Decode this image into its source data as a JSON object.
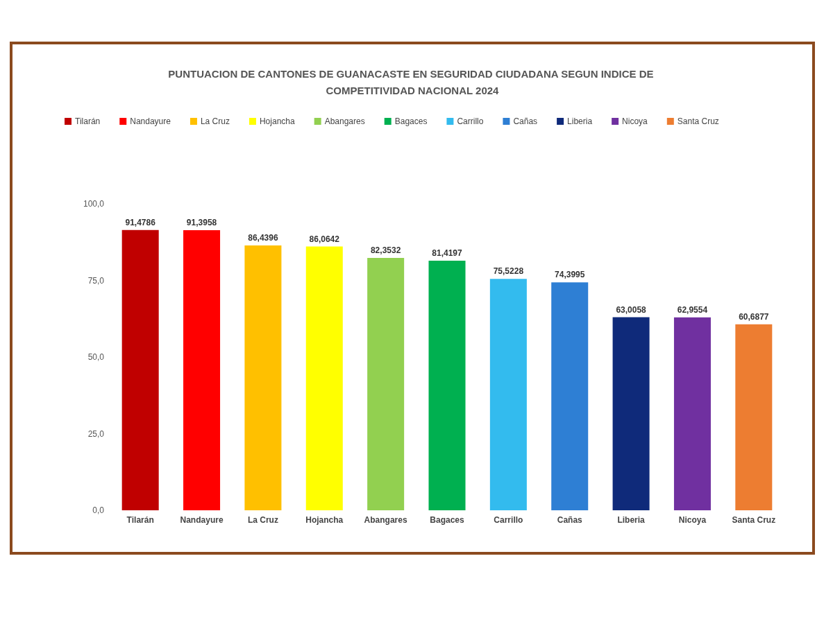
{
  "chart_data": {
    "type": "bar",
    "title": "PUNTUACION DE CANTONES DE GUANACASTE EN SEGURIDAD CIUDADANA SEGUN INDICE DE COMPETITIVIDAD NACIONAL 2024",
    "categories": [
      "Tilarán",
      "Nandayure",
      "La Cruz",
      "Hojancha",
      "Abangares",
      "Bagaces",
      "Carrillo",
      "Cañas",
      "Liberia",
      "Nicoya",
      "Santa Cruz"
    ],
    "series": [
      {
        "name": "Tilarán",
        "color": "#c00000",
        "values": [
          91.4786,
          null,
          null,
          null,
          null,
          null,
          null,
          null,
          null,
          null,
          null
        ],
        "value_labels": [
          "91,4786",
          null,
          null,
          null,
          null,
          null,
          null,
          null,
          null,
          null,
          null
        ]
      },
      {
        "name": "Nandayure",
        "color": "#ff0000",
        "values": [
          null,
          91.3958,
          null,
          null,
          null,
          null,
          null,
          null,
          null,
          null,
          null
        ],
        "value_labels": [
          null,
          "91,3958",
          null,
          null,
          null,
          null,
          null,
          null,
          null,
          null,
          null
        ]
      },
      {
        "name": "La Cruz",
        "color": "#ffc000",
        "values": [
          null,
          null,
          86.4396,
          null,
          null,
          null,
          null,
          null,
          null,
          null,
          null
        ],
        "value_labels": [
          null,
          null,
          "86,4396",
          null,
          null,
          null,
          null,
          null,
          null,
          null,
          null
        ]
      },
      {
        "name": "Hojancha",
        "color": "#ffff00",
        "values": [
          null,
          null,
          null,
          86.0642,
          null,
          null,
          null,
          null,
          null,
          null,
          null
        ],
        "value_labels": [
          null,
          null,
          null,
          "86,0642",
          null,
          null,
          null,
          null,
          null,
          null,
          null
        ]
      },
      {
        "name": "Abangares",
        "color": "#92d050",
        "values": [
          null,
          null,
          null,
          null,
          82.3532,
          null,
          null,
          null,
          null,
          null,
          null
        ],
        "value_labels": [
          null,
          null,
          null,
          null,
          "82,3532",
          null,
          null,
          null,
          null,
          null,
          null
        ]
      },
      {
        "name": "Bagaces",
        "color": "#00b050",
        "values": [
          null,
          null,
          null,
          null,
          null,
          81.4197,
          null,
          null,
          null,
          null,
          null
        ],
        "value_labels": [
          null,
          null,
          null,
          null,
          null,
          "81,4197",
          null,
          null,
          null,
          null,
          null
        ]
      },
      {
        "name": "Carrillo",
        "color": "#33bbee",
        "values": [
          null,
          null,
          null,
          null,
          null,
          null,
          75.5228,
          null,
          null,
          null,
          null
        ],
        "value_labels": [
          null,
          null,
          null,
          null,
          null,
          null,
          "75,5228",
          null,
          null,
          null,
          null
        ]
      },
      {
        "name": "Cañas",
        "color": "#2e7fd4",
        "values": [
          null,
          null,
          null,
          null,
          null,
          null,
          null,
          74.3995,
          null,
          null,
          null
        ],
        "value_labels": [
          null,
          null,
          null,
          null,
          null,
          null,
          null,
          "74,3995",
          null,
          null,
          null
        ]
      },
      {
        "name": "Liberia",
        "color": "#0f2a7a",
        "values": [
          null,
          null,
          null,
          null,
          null,
          null,
          null,
          null,
          63.0058,
          null,
          null
        ],
        "value_labels": [
          null,
          null,
          null,
          null,
          null,
          null,
          null,
          null,
          "63,0058",
          null,
          null
        ]
      },
      {
        "name": "Nicoya",
        "color": "#7030a0",
        "values": [
          null,
          null,
          null,
          null,
          null,
          null,
          null,
          null,
          null,
          62.9554,
          null
        ],
        "value_labels": [
          null,
          null,
          null,
          null,
          null,
          null,
          null,
          null,
          null,
          "62,9554",
          null
        ]
      },
      {
        "name": "Santa Cruz",
        "color": "#ed7d31",
        "values": [
          null,
          null,
          null,
          null,
          null,
          null,
          null,
          null,
          null,
          null,
          60.6877
        ],
        "value_labels": [
          null,
          null,
          null,
          null,
          null,
          null,
          null,
          null,
          null,
          null,
          "60,6877"
        ]
      }
    ],
    "ylim": [
      0,
      100
    ],
    "yticks": [
      {
        "value": 0,
        "label": "0,0"
      },
      {
        "value": 25,
        "label": "25,0"
      },
      {
        "value": 50,
        "label": "50,0"
      },
      {
        "value": 75,
        "label": "75,0"
      },
      {
        "value": 100,
        "label": "100,0"
      }
    ],
    "grid": false,
    "legend": "top"
  }
}
